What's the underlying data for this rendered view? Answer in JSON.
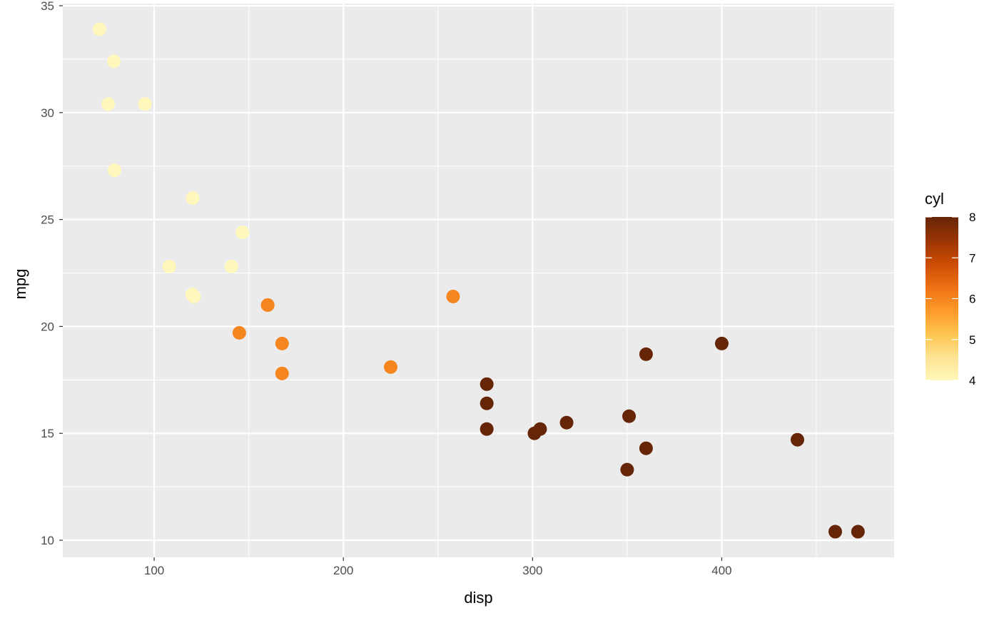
{
  "chart_data": {
    "type": "scatter",
    "title": "",
    "xlabel": "disp",
    "ylabel": "mpg",
    "xlim": [
      51.7,
      491.1
    ],
    "ylim": [
      9.2,
      35.1
    ],
    "x_ticks": [
      100,
      200,
      300,
      400
    ],
    "y_ticks": [
      10,
      15,
      20,
      25,
      30,
      35
    ],
    "x_tick_labels": [
      "100",
      "200",
      "300",
      "400"
    ],
    "y_tick_labels": [
      "10",
      "15",
      "20",
      "25",
      "30",
      "35"
    ],
    "grid": true,
    "background": "#ebebeb",
    "color_by": "cyl",
    "legend": {
      "title": "cyl",
      "position": "right",
      "type": "colorbar",
      "min": 4,
      "max": 8,
      "ticks": [
        4,
        5,
        6,
        7,
        8
      ],
      "tick_labels": [
        "4",
        "5",
        "6",
        "7",
        "8"
      ],
      "colors": [
        "#fff7bc",
        "#fee391",
        "#fec44f",
        "#fe9929",
        "#ec7014",
        "#cc4c02",
        "#993404",
        "#662506"
      ]
    },
    "points": [
      {
        "x": 71.1,
        "y": 33.9,
        "cyl": 4
      },
      {
        "x": 78.7,
        "y": 32.4,
        "cyl": 4
      },
      {
        "x": 75.7,
        "y": 30.4,
        "cyl": 4
      },
      {
        "x": 95.1,
        "y": 30.4,
        "cyl": 4
      },
      {
        "x": 79.0,
        "y": 27.3,
        "cyl": 4
      },
      {
        "x": 120.3,
        "y": 26.0,
        "cyl": 4
      },
      {
        "x": 146.7,
        "y": 24.4,
        "cyl": 4
      },
      {
        "x": 108.0,
        "y": 22.8,
        "cyl": 4
      },
      {
        "x": 140.8,
        "y": 22.8,
        "cyl": 4
      },
      {
        "x": 120.1,
        "y": 21.5,
        "cyl": 4
      },
      {
        "x": 121.0,
        "y": 21.4,
        "cyl": 4
      },
      {
        "x": 160.0,
        "y": 21.0,
        "cyl": 6
      },
      {
        "x": 160.0,
        "y": 21.0,
        "cyl": 6
      },
      {
        "x": 258.0,
        "y": 21.4,
        "cyl": 6
      },
      {
        "x": 145.0,
        "y": 19.7,
        "cyl": 6
      },
      {
        "x": 167.6,
        "y": 19.2,
        "cyl": 6
      },
      {
        "x": 167.6,
        "y": 17.8,
        "cyl": 6
      },
      {
        "x": 225.0,
        "y": 18.1,
        "cyl": 6
      },
      {
        "x": 360.0,
        "y": 18.7,
        "cyl": 8
      },
      {
        "x": 400.0,
        "y": 19.2,
        "cyl": 8
      },
      {
        "x": 275.8,
        "y": 17.3,
        "cyl": 8
      },
      {
        "x": 275.8,
        "y": 16.4,
        "cyl": 8
      },
      {
        "x": 275.8,
        "y": 15.2,
        "cyl": 8
      },
      {
        "x": 304.0,
        "y": 15.2,
        "cyl": 8
      },
      {
        "x": 301.0,
        "y": 15.0,
        "cyl": 8
      },
      {
        "x": 318.0,
        "y": 15.5,
        "cyl": 8
      },
      {
        "x": 351.0,
        "y": 15.8,
        "cyl": 8
      },
      {
        "x": 360.0,
        "y": 14.3,
        "cyl": 8
      },
      {
        "x": 350.0,
        "y": 13.3,
        "cyl": 8
      },
      {
        "x": 440.0,
        "y": 14.7,
        "cyl": 8
      },
      {
        "x": 460.0,
        "y": 10.4,
        "cyl": 8
      },
      {
        "x": 472.0,
        "y": 10.4,
        "cyl": 8
      }
    ]
  }
}
